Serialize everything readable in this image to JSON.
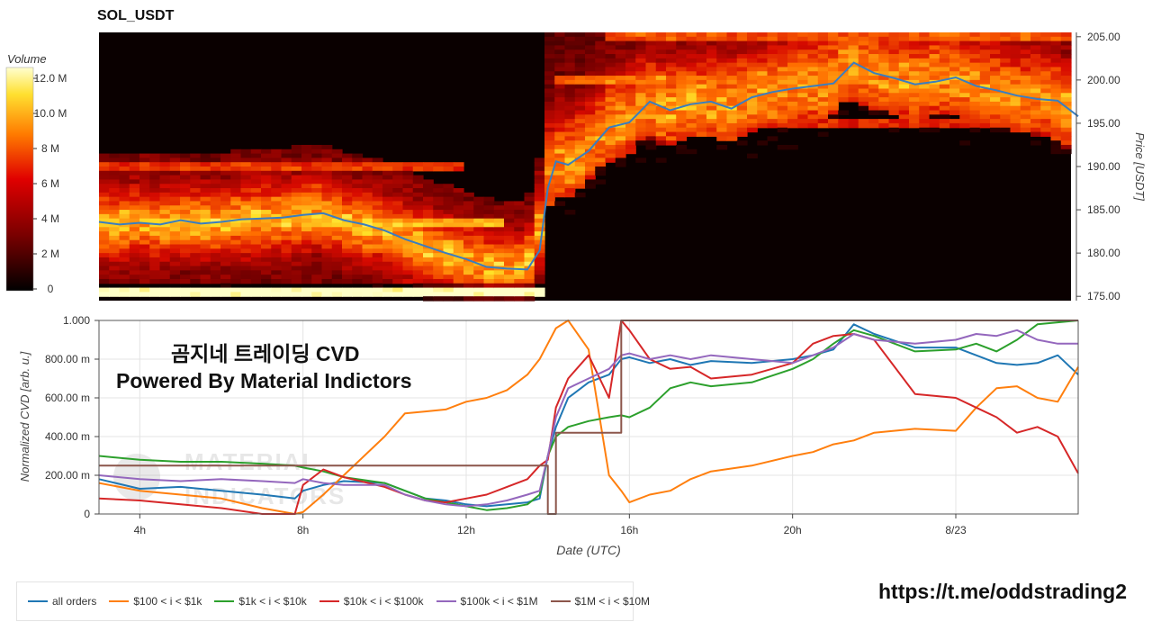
{
  "title": "SOL_USDT",
  "overlay": {
    "line1": "곰지네 트레이딩 CVD",
    "line2": "Powered By Material Indictors"
  },
  "watermark": "MATERIAL INDICATORS",
  "footer_url": "https://t.me/oddstrading2",
  "colorbar": {
    "label": "Volume",
    "ticks": [
      "0",
      "2 M",
      "4 M",
      "6 M",
      "8 M",
      "10.0 M",
      "12.0 M"
    ]
  },
  "colors": {
    "price_line": "#3a7ebf",
    "heat_low": "#000000",
    "heat_mid": "#c80000",
    "heat_high": "#ffff40"
  },
  "chart_data": [
    {
      "type": "heatmap",
      "title": "SOL_USDT",
      "ylabel": "Price [USDT]",
      "ylim": [
        174.5,
        205.5
      ],
      "yticks": [
        "175.00",
        "180.00",
        "185.00",
        "190.00",
        "195.00",
        "200.00",
        "205.00"
      ],
      "price_series": {
        "x_hours": [
          3.0,
          3.5,
          4.0,
          4.5,
          5.0,
          5.5,
          6.0,
          6.5,
          7.0,
          7.5,
          8.0,
          8.5,
          9.0,
          9.5,
          10.0,
          10.5,
          11.0,
          11.5,
          12.0,
          12.5,
          13.0,
          13.5,
          13.8,
          14.0,
          14.2,
          14.5,
          15.0,
          15.5,
          16.0,
          16.5,
          17.0,
          17.5,
          18.0,
          18.5,
          19.0,
          19.5,
          20.0,
          20.5,
          21.0,
          21.5,
          22.0,
          22.5,
          23.0,
          23.5,
          24.0,
          24.5,
          25.0,
          25.5,
          26.0,
          26.5,
          27.0
        ],
        "price": [
          183.6,
          183.3,
          183.5,
          183.3,
          183.8,
          183.4,
          183.6,
          183.9,
          184.0,
          184.1,
          184.4,
          184.6,
          183.8,
          183.3,
          182.6,
          181.6,
          180.8,
          180.0,
          179.3,
          178.4,
          178.2,
          178.1,
          180.3,
          187.5,
          190.6,
          190.2,
          191.8,
          194.5,
          195.1,
          197.5,
          196.5,
          197.2,
          197.5,
          196.7,
          198.0,
          198.6,
          199.0,
          199.3,
          199.6,
          202.0,
          200.8,
          200.2,
          199.5,
          199.8,
          200.3,
          199.3,
          198.8,
          198.2,
          197.8,
          197.6,
          195.8
        ]
      },
      "heat_bands": [
        {
          "price": 175.3,
          "start": 3.0,
          "end": 14.0,
          "intensity": 1.0
        },
        {
          "price": 183.7,
          "start": 3.0,
          "end": 13.0,
          "intensity": 0.8
        },
        {
          "price": 189.8,
          "start": 3.0,
          "end": 12.0,
          "intensity": 0.6
        },
        {
          "price": 204.8,
          "start": 15.5,
          "end": 27.0,
          "intensity": 0.65
        },
        {
          "price": 199.9,
          "start": 14.3,
          "end": 21.0,
          "intensity": 0.7
        },
        {
          "price": 194.9,
          "start": 14.3,
          "end": 27.0,
          "intensity": 0.55
        },
        {
          "price": 198.0,
          "start": 25.0,
          "end": 27.0,
          "intensity": 0.75
        }
      ]
    },
    {
      "type": "line",
      "xlabel": "Date (UTC)",
      "ylabel": "Normalized CVD [arb. u.]",
      "ylim": [
        0,
        1.0
      ],
      "yticks": [
        "0",
        "200.00 m",
        "400.00 m",
        "600.00 m",
        "800.00 m",
        "1.000"
      ],
      "xticks": [
        {
          "hour": 4,
          "label": "4h"
        },
        {
          "hour": 8,
          "label": "8h"
        },
        {
          "hour": 12,
          "label": "12h"
        },
        {
          "hour": 16,
          "label": "16h"
        },
        {
          "hour": 20,
          "label": "20h"
        },
        {
          "hour": 24,
          "label": "8/23"
        }
      ],
      "x": [
        3.0,
        4.0,
        5.0,
        6.0,
        7.0,
        7.8,
        8.0,
        8.5,
        9.0,
        10.0,
        10.5,
        11.0,
        11.5,
        12.0,
        12.5,
        13.0,
        13.5,
        13.8,
        14.0,
        14.2,
        14.5,
        15.0,
        15.5,
        15.8,
        16.0,
        16.5,
        17.0,
        17.5,
        18.0,
        19.0,
        20.0,
        20.5,
        21.0,
        21.5,
        22.0,
        23.0,
        24.0,
        24.5,
        25.0,
        25.5,
        26.0,
        26.5,
        27.0
      ],
      "series": [
        {
          "name": "all orders",
          "color": "#1f77b4",
          "values": [
            0.18,
            0.13,
            0.14,
            0.12,
            0.1,
            0.08,
            0.12,
            0.15,
            0.17,
            0.16,
            0.12,
            0.08,
            0.07,
            0.05,
            0.04,
            0.05,
            0.06,
            0.08,
            0.3,
            0.45,
            0.6,
            0.68,
            0.72,
            0.8,
            0.81,
            0.78,
            0.8,
            0.77,
            0.79,
            0.78,
            0.8,
            0.82,
            0.85,
            0.98,
            0.93,
            0.86,
            0.86,
            0.82,
            0.78,
            0.77,
            0.78,
            0.82,
            0.72
          ]
        },
        {
          "name": "$100 < i < $1k",
          "color": "#ff7f0e",
          "values": [
            0.16,
            0.12,
            0.1,
            0.08,
            0.03,
            0.0,
            0.01,
            0.1,
            0.2,
            0.4,
            0.52,
            0.53,
            0.54,
            0.58,
            0.6,
            0.64,
            0.72,
            0.8,
            0.88,
            0.96,
            1.0,
            0.85,
            0.2,
            0.12,
            0.06,
            0.1,
            0.12,
            0.18,
            0.22,
            0.25,
            0.3,
            0.32,
            0.36,
            0.38,
            0.42,
            0.44,
            0.43,
            0.55,
            0.65,
            0.66,
            0.6,
            0.58,
            0.76
          ]
        },
        {
          "name": "$1k < i < $10k",
          "color": "#2ca02c",
          "values": [
            0.3,
            0.28,
            0.27,
            0.27,
            0.26,
            0.25,
            0.24,
            0.22,
            0.19,
            0.16,
            0.12,
            0.08,
            0.06,
            0.04,
            0.02,
            0.03,
            0.05,
            0.1,
            0.3,
            0.4,
            0.45,
            0.48,
            0.5,
            0.51,
            0.5,
            0.55,
            0.65,
            0.68,
            0.66,
            0.68,
            0.75,
            0.8,
            0.88,
            0.95,
            0.92,
            0.84,
            0.85,
            0.88,
            0.84,
            0.9,
            0.98,
            0.99,
            1.0
          ]
        },
        {
          "name": "$10k < i < $100k",
          "color": "#d62728",
          "values": [
            0.08,
            0.07,
            0.05,
            0.03,
            0.0,
            0.0,
            0.15,
            0.23,
            0.19,
            0.14,
            0.1,
            0.07,
            0.06,
            0.08,
            0.1,
            0.14,
            0.18,
            0.25,
            0.28,
            0.55,
            0.7,
            0.82,
            0.6,
            1.0,
            0.95,
            0.8,
            0.75,
            0.76,
            0.7,
            0.72,
            0.78,
            0.88,
            0.92,
            0.93,
            0.9,
            0.62,
            0.6,
            0.55,
            0.5,
            0.42,
            0.45,
            0.4,
            0.21
          ]
        },
        {
          "name": "$100k < i < $1M",
          "color": "#9467bd",
          "values": [
            0.2,
            0.18,
            0.17,
            0.18,
            0.17,
            0.16,
            0.18,
            0.16,
            0.15,
            0.15,
            0.1,
            0.07,
            0.05,
            0.04,
            0.05,
            0.07,
            0.1,
            0.12,
            0.3,
            0.5,
            0.65,
            0.7,
            0.75,
            0.82,
            0.83,
            0.8,
            0.82,
            0.8,
            0.82,
            0.8,
            0.78,
            0.82,
            0.86,
            0.93,
            0.9,
            0.88,
            0.9,
            0.93,
            0.92,
            0.95,
            0.9,
            0.88,
            0.88
          ]
        },
        {
          "name": "$1M < i < $10M",
          "color": "#8c564b",
          "values": [
            0.25,
            0.25,
            0.25,
            0.25,
            0.25,
            0.25,
            0.25,
            0.25,
            0.25,
            0.25,
            0.25,
            0.25,
            0.25,
            0.25,
            0.25,
            0.25,
            0.25,
            0.25,
            0.0,
            0.42,
            0.42,
            0.42,
            0.42,
            1.0,
            1.0,
            1.0,
            1.0,
            1.0,
            1.0,
            1.0,
            1.0,
            1.0,
            1.0,
            1.0,
            1.0,
            1.0,
            1.0,
            1.0,
            1.0,
            1.0,
            1.0,
            1.0,
            1.0
          ]
        }
      ]
    }
  ]
}
